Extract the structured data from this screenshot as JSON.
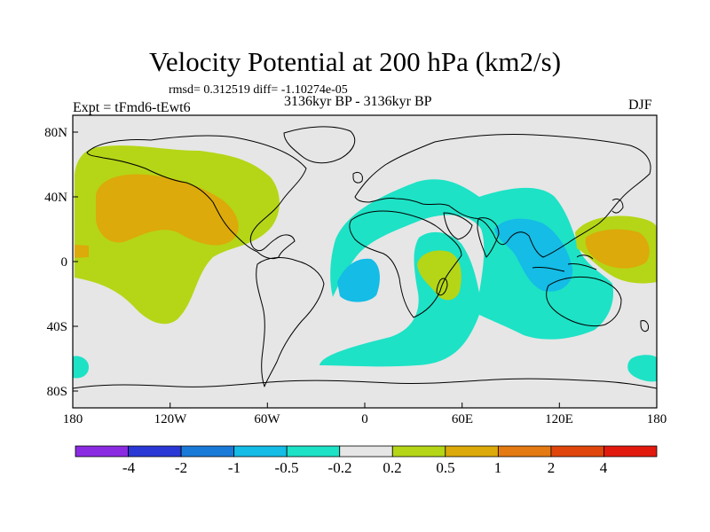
{
  "title": "Velocity Potential at 200 hPa (km2/s)",
  "stats_text": "rmsd= 0.312519 diff= -1.10274e-05",
  "period_text": "3136kyr BP - 3136kyr BP",
  "experiment_text": "Expt = tFmd6-tEwt6",
  "season_text": "DJF",
  "map": {
    "projection": "cylindrical equidistant",
    "lon_range": [
      -180,
      180
    ],
    "lat_range": [
      -90,
      90
    ],
    "x_tick_labels": [
      "180",
      "120W",
      "60W",
      "0",
      "60E",
      "120E",
      "180"
    ],
    "y_tick_labels": [
      "80N",
      "40N",
      "0",
      "40S",
      "80S"
    ]
  },
  "colorbar": {
    "labels": [
      "-4",
      "-2",
      "-1",
      "-0.5",
      "-0.2",
      "0.2",
      "0.5",
      "1",
      "2",
      "4"
    ],
    "colors": [
      "#8a2be2",
      "#2a38d6",
      "#1a7ad8",
      "#14bce6",
      "#1de2c6",
      "#e6e6e6",
      "#b4d617",
      "#dcaa0a",
      "#e47a12",
      "#e0460c",
      "#e21a0e"
    ]
  },
  "colors": {
    "background": "#e6e6e6",
    "pos_weak": "#b4d617",
    "pos_mid": "#dcaa0a",
    "neg_weak": "#1de2c6",
    "neg_mid": "#14bce6",
    "coast": "#000000"
  }
}
